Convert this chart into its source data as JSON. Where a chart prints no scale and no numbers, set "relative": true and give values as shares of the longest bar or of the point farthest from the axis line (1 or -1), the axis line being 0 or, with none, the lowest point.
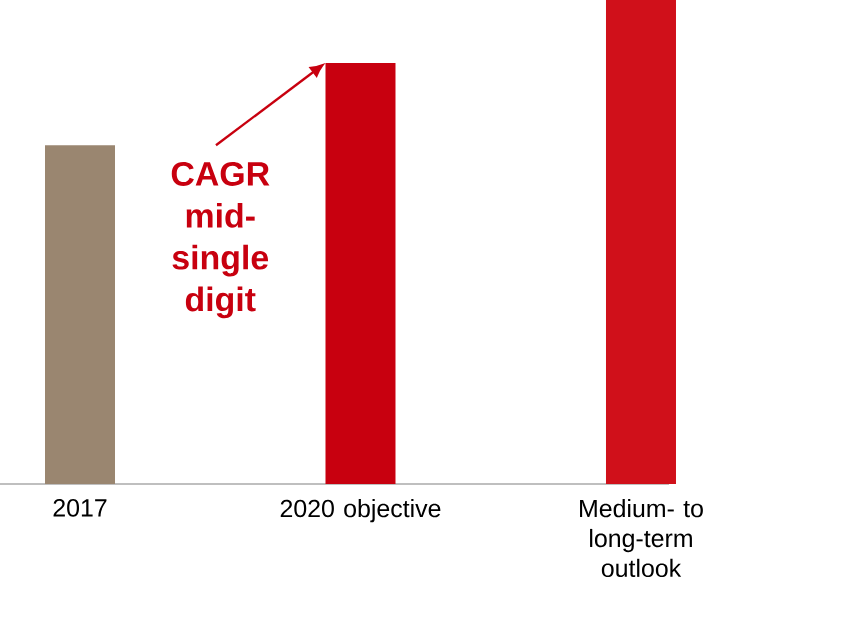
{
  "chart_data": {
    "type": "bar",
    "relative": true,
    "categories": [
      "2017",
      "2020 objective",
      "Medium- to long-term outlook"
    ],
    "values": [
      0.7,
      0.87,
      1
    ],
    "colors": [
      "#9a8670",
      "#c8000f",
      "#d0101a"
    ],
    "annotations": [
      "CAGR mid-single digit"
    ]
  }
}
